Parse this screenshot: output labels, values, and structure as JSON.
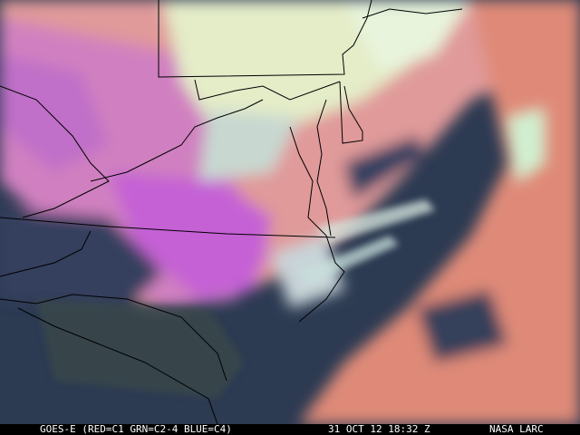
{
  "caption": {
    "satellite": "GOES-E (RED=C1 GRN=C2-4 BLUE=C4)",
    "datetime": "31 OCT 12 18:32 Z",
    "credit": "NASA LARC"
  },
  "colors": {
    "clear_sky": "#2c3a52",
    "low_cloud_salmon": "#e08a7a",
    "ice_cloud_magenta": "#c060d0",
    "bright_cloud": "#d8f0d0",
    "boundaries": "#000000"
  }
}
